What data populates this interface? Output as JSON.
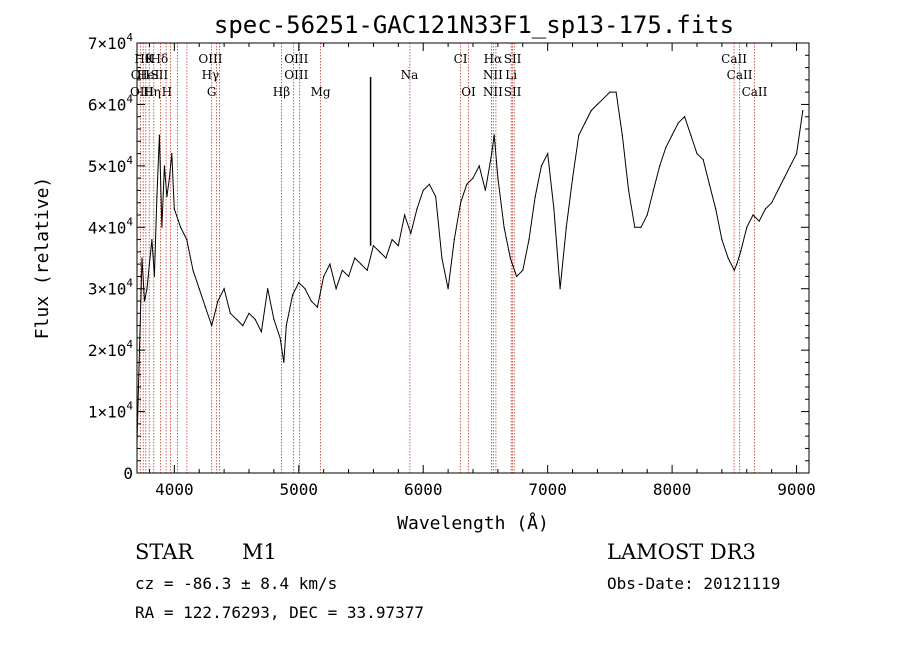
{
  "chart_data": {
    "type": "line",
    "title": "spec-56251-GAC121N33F1_sp13-175.fits",
    "xlabel": "Wavelength (Å)",
    "ylabel": "Flux (relative)",
    "xlim": [
      3700,
      9100
    ],
    "ylim": [
      0,
      70000
    ],
    "x_ticks": [
      4000,
      5000,
      6000,
      7000,
      8000,
      9000
    ],
    "x_tick_labels": [
      "4000",
      "5000",
      "6000",
      "7000",
      "8000",
      "9000"
    ],
    "y_ticks": [
      0,
      10000,
      20000,
      30000,
      40000,
      50000,
      60000,
      70000
    ],
    "y_tick_labels": [
      {
        "mant": "0",
        "exp": ""
      },
      {
        "mant": "1×10",
        "exp": "4"
      },
      {
        "mant": "2×10",
        "exp": "4"
      },
      {
        "mant": "3×10",
        "exp": "4"
      },
      {
        "mant": "4×10",
        "exp": "4"
      },
      {
        "mant": "5×10",
        "exp": "4"
      },
      {
        "mant": "6×10",
        "exp": "4"
      },
      {
        "mant": "7×10",
        "exp": "4"
      }
    ],
    "series": [
      {
        "name": "flux",
        "x": [
          3700,
          3720,
          3740,
          3760,
          3780,
          3800,
          3820,
          3840,
          3860,
          3880,
          3900,
          3920,
          3940,
          3960,
          3980,
          4000,
          4050,
          4100,
          4150,
          4200,
          4250,
          4300,
          4350,
          4400,
          4450,
          4500,
          4550,
          4600,
          4650,
          4700,
          4750,
          4800,
          4850,
          4880,
          4900,
          4950,
          5000,
          5050,
          5100,
          5150,
          5200,
          5250,
          5300,
          5350,
          5400,
          5450,
          5500,
          5550,
          5600,
          5650,
          5700,
          5750,
          5800,
          5850,
          5900,
          5950,
          6000,
          6050,
          6100,
          6150,
          6200,
          6250,
          6300,
          6350,
          6400,
          6450,
          6500,
          6550,
          6570,
          6600,
          6650,
          6700,
          6750,
          6800,
          6850,
          6900,
          6950,
          7000,
          7050,
          7100,
          7150,
          7200,
          7250,
          7300,
          7350,
          7400,
          7450,
          7500,
          7550,
          7600,
          7650,
          7700,
          7750,
          7800,
          7850,
          7900,
          7950,
          8000,
          8050,
          8100,
          8150,
          8200,
          8250,
          8300,
          8350,
          8400,
          8450,
          8500,
          8520,
          8550,
          8600,
          8650,
          8700,
          8750,
          8800,
          8850,
          8900,
          8950,
          9000,
          9050
        ],
        "y": [
          5000,
          20000,
          35000,
          28000,
          30000,
          34000,
          38000,
          32000,
          45000,
          55000,
          40000,
          50000,
          45000,
          48000,
          52000,
          43000,
          40000,
          38000,
          33000,
          30000,
          27000,
          24000,
          28000,
          30000,
          26000,
          25000,
          24000,
          26000,
          25000,
          23000,
          30000,
          25000,
          22000,
          18000,
          24000,
          29000,
          31000,
          30000,
          28000,
          27000,
          32000,
          34000,
          30000,
          33000,
          32000,
          35000,
          34000,
          33000,
          37000,
          36000,
          35000,
          38000,
          37000,
          42000,
          39000,
          43000,
          46000,
          47000,
          45000,
          35000,
          30000,
          38000,
          44000,
          47000,
          48000,
          50000,
          46000,
          52000,
          55000,
          48000,
          40000,
          35000,
          32000,
          33000,
          38000,
          45000,
          50000,
          52000,
          43000,
          30000,
          40000,
          48000,
          55000,
          57000,
          59000,
          60000,
          61000,
          62000,
          62000,
          55000,
          46000,
          40000,
          40000,
          42000,
          46000,
          50000,
          53000,
          55000,
          57000,
          58000,
          55000,
          52000,
          51000,
          47000,
          43000,
          38000,
          35000,
          33000,
          34000,
          36000,
          40000,
          42000,
          41000,
          43000,
          44000,
          46000,
          48000,
          50000,
          52000,
          59000
        ]
      }
    ],
    "line_labels": [
      {
        "row": 1,
        "labels": [
          {
            "x": 3750,
            "text": "Hθ"
          },
          {
            "x": 3800,
            "text": "K"
          },
          {
            "x": 3880,
            "text": "Hδ"
          },
          {
            "x": 4290,
            "text": "OIII"
          },
          {
            "x": 4980,
            "text": "OIII"
          },
          {
            "x": 6300,
            "text": "CI"
          },
          {
            "x": 6560,
            "text": "Hα"
          },
          {
            "x": 6718,
            "text": "SII"
          },
          {
            "x": 8498,
            "text": "CaII"
          }
        ]
      },
      {
        "row": 2,
        "labels": [
          {
            "x": 3727,
            "text": "OII"
          },
          {
            "x": 3790,
            "text": "HeI"
          },
          {
            "x": 3880,
            "text": "SII"
          },
          {
            "x": 4290,
            "text": "Hγ"
          },
          {
            "x": 4980,
            "text": "OIII"
          },
          {
            "x": 5889,
            "text": "Na"
          },
          {
            "x": 6560,
            "text": "NII"
          },
          {
            "x": 6707,
            "text": "Li"
          },
          {
            "x": 8542,
            "text": "CaII"
          }
        ]
      },
      {
        "row": 3,
        "labels": [
          {
            "x": 3740,
            "text": "OIII"
          },
          {
            "x": 3820,
            "text": "Hη"
          },
          {
            "x": 3940,
            "text": "H"
          },
          {
            "x": 4300,
            "text": "G"
          },
          {
            "x": 4861,
            "text": "Hβ"
          },
          {
            "x": 5175,
            "text": "Mg"
          },
          {
            "x": 6364,
            "text": "OI"
          },
          {
            "x": 6560,
            "text": "NII"
          },
          {
            "x": 6718,
            "text": "SII"
          },
          {
            "x": 8662,
            "text": "CaII"
          }
        ]
      }
    ],
    "line_markers": [
      3727,
      3750,
      3771,
      3798,
      3835,
      3889,
      3934,
      3969,
      4026,
      4101,
      4300,
      4340,
      4363,
      4861,
      4959,
      5007,
      5175,
      5893,
      6300,
      6364,
      6548,
      6563,
      6584,
      6707,
      6716,
      6731,
      8498,
      8542,
      8662
    ]
  },
  "info": {
    "object_class": "STAR",
    "subclass": "M1",
    "survey": "LAMOST DR3",
    "cz": "cz = -86.3 ± 8.4 km/s",
    "obs_date": "Obs-Date: 20121119",
    "coords": "RA = 122.76293, DEC =  33.97377"
  }
}
